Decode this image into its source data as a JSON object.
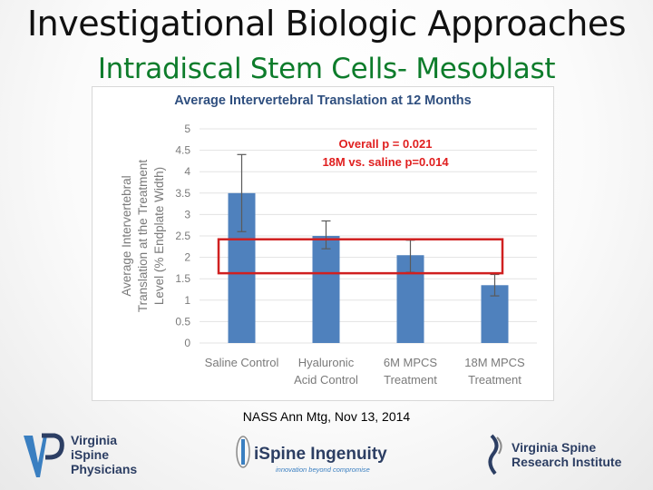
{
  "slide": {
    "title": "Investigational Biologic Approaches",
    "subtitle": "Intradiscal Stem Cells- Mesoblast",
    "citation": "NASS Ann Mtg, Nov 13, 2014"
  },
  "chart_data": {
    "type": "bar",
    "title": "Average Intervertebral Translation at 12 Months",
    "ylabel_lines": [
      "Average Intervertebral",
      "Translation at the Treatment",
      "Level (% Endplate Width)"
    ],
    "categories": [
      [
        "Saline Control"
      ],
      [
        "Hyaluronic",
        "Acid Control"
      ],
      [
        "6M MPCS",
        "Treatment"
      ],
      [
        "18M MPCS",
        "Treatment"
      ]
    ],
    "values": [
      3.5,
      2.5,
      2.05,
      1.35
    ],
    "error_bars": [
      [
        2.6,
        4.4
      ],
      [
        2.2,
        2.85
      ],
      [
        1.65,
        2.4
      ],
      [
        1.1,
        1.6
      ]
    ],
    "ylim": [
      0,
      5
    ],
    "yticks": [
      "0",
      "0.5",
      "1",
      "1.5",
      "2",
      "2.5",
      "3",
      "3.5",
      "4",
      "4.5",
      "5"
    ],
    "annotations": [
      "Overall p = 0.021",
      "18M vs. saline p=0.014"
    ],
    "highlight_range": [
      1.65,
      2.4
    ],
    "colors": {
      "bar": "#4f81bd",
      "title": "#2f4f7f",
      "axis_text": "#7a7a7a",
      "annotation": "#e02020",
      "highlight": "#d02020"
    }
  },
  "footer": {
    "logo_vip": [
      "Virginia",
      "iSpine",
      "Physicians"
    ],
    "logo_ispine": "iSpine Ingenuity",
    "logo_ispine_tagline": "innovation beyond compromise",
    "logo_vsri": [
      "Virginia Spine",
      "Research Institute"
    ],
    "colors": {
      "navy": "#2c3e63",
      "blue": "#3a7fc1",
      "gray": "#8a8a8a"
    }
  }
}
